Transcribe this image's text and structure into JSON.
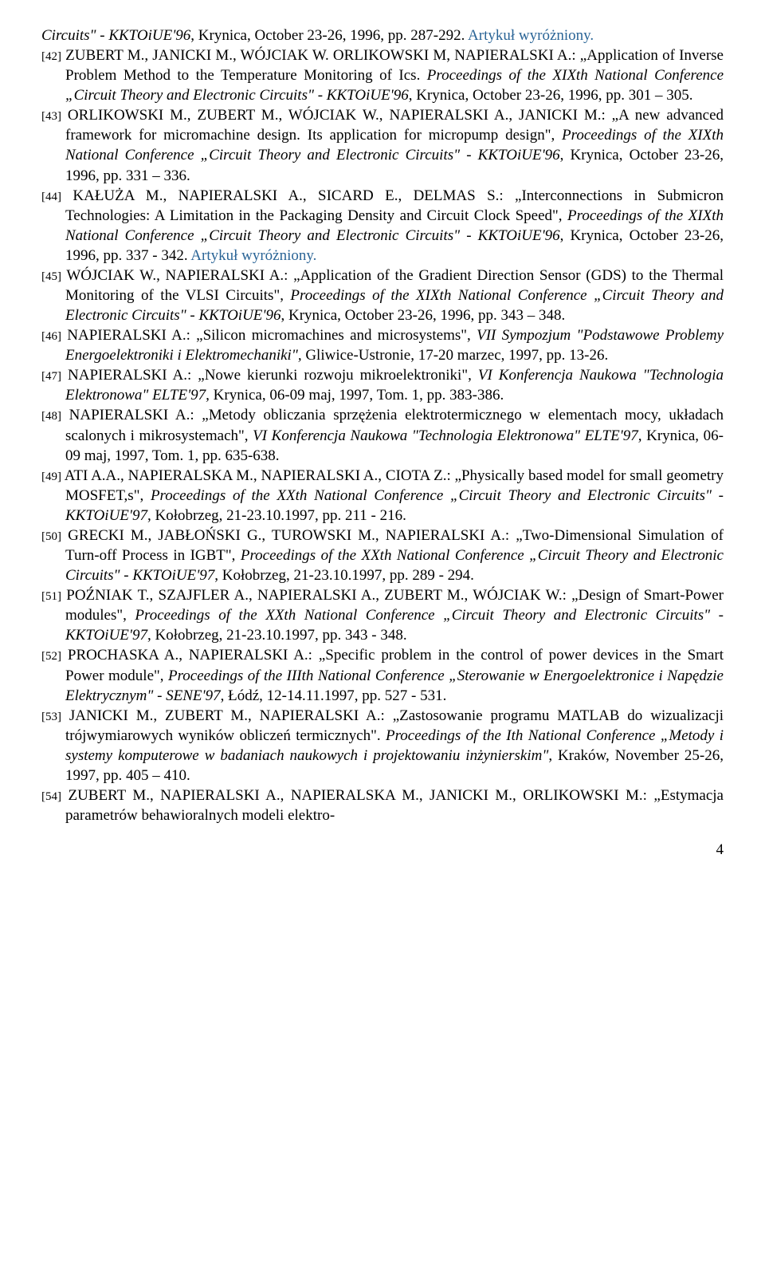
{
  "trail_italic": "Circuits\" - KKTOiUE'96",
  "trail_plain": ", Krynica, October 23-26, 1996, pp. 287-292. ",
  "trail_highlight": "Artykuł wyróżniony.",
  "page_number": "4",
  "refs": [
    {
      "num": "[42]",
      "plain1": " ZUBERT M., JANICKI M., WÓJCIAK W. ORLIKOWSKI M, NAPIERALSKI A.: „Application of Inverse Problem Method to the Temperature Monitoring of Ics. ",
      "italic1": "Proceedings of the XIXth National Conference „Circuit Theory and Electronic Circuits\" - KKTOiUE'96",
      "plain2": ", Krynica, October 23-26, 1996, pp. 301 – 305.",
      "italic2": "",
      "plain3": "",
      "highlight": ""
    },
    {
      "num": "[43]",
      "plain1": " ORLIKOWSKI M., ZUBERT M., WÓJCIAK W., NAPIERALSKI A., JANICKI M.: „A new advanced framework for micromachine design. Its application for micropump design\", ",
      "italic1": "Proceedings of the XIXth National Conference „Circuit Theory and Electronic Circuits\" - KKTOiUE'96",
      "plain2": ", Krynica, October 23-26, 1996, pp. 331 – 336.",
      "italic2": "",
      "plain3": "",
      "highlight": ""
    },
    {
      "num": "[44]",
      "plain1": " KAŁUŻA M., NAPIERALSKI A., SICARD E., DELMAS S.: „Interconnections in Submicron Technologies: A Limitation in the Packaging Density and Circuit Clock Speed\", ",
      "italic1": "Proceedings of the XIXth National Conference „Circuit Theory and Electronic Circuits\" - KKTOiUE'96",
      "plain2": ", Krynica, October 23-26, 1996, pp. 337 - 342. ",
      "italic2": "",
      "plain3": "",
      "highlight": "Artykuł wyróżniony."
    },
    {
      "num": "[45]",
      "plain1": " WÓJCIAK W., NAPIERALSKI A.: „Application of the Gradient Direction Sensor (GDS) to the Thermal Monitoring of the VLSI Circuits\", ",
      "italic1": "Proceedings of the XIXth National Conference „Circuit Theory and Electronic Circuits\" - KKTOiUE'96",
      "plain2": ", Krynica, October 23-26, 1996, pp. 343 – 348.",
      "italic2": "",
      "plain3": "",
      "highlight": ""
    },
    {
      "num": "[46]",
      "plain1": " NAPIERALSKI A.: „Silicon micromachines and microsystems\", ",
      "italic1": "VII Sympozjum \"Podstawowe Problemy Energoelektroniki i Elektromechaniki\",",
      "plain2": " Gliwice-Ustronie, 17-20 marzec, 1997, pp. 13-26.",
      "italic2": "",
      "plain3": "",
      "highlight": ""
    },
    {
      "num": "[47]",
      "plain1": " NAPIERALSKI A.: „Nowe kierunki rozwoju mikroelektroniki\", ",
      "italic1": "VI Konferencja Naukowa \"Technologia Elektronowa\" ELTE'97,",
      "plain2": " Krynica, 06-09 maj, 1997, Tom. 1, pp. 383-386.",
      "italic2": "",
      "plain3": "",
      "highlight": ""
    },
    {
      "num": "[48]",
      "plain1": " NAPIERALSKI A.: „Metody obliczania sprzężenia elektrotermicznego w elementach mocy, układach scalonych i mikrosystemach\", ",
      "italic1": "VI Konferencja Naukowa \"Technologia Elektronowa\" ELTE'97,",
      "plain2": " Krynica, 06-09 maj, 1997, Tom. 1, pp. 635-638.",
      "italic2": "",
      "plain3": "",
      "highlight": ""
    },
    {
      "num": "[49]",
      "plain1": " ATI A.A., NAPIERALSKA M., NAPIERALSKI A., CIOTA Z.: „Physically based model for small geometry MOSFET,s\", ",
      "italic1": "Proceedings of the XXth National Conference „Circuit Theory and Electronic Circuits\" - KKTOiUE'97",
      "plain2": ", Kołobrzeg, 21-23.10.1997, pp. 211 - 216.",
      "italic2": "",
      "plain3": "",
      "highlight": ""
    },
    {
      "num": "[50]",
      "plain1": " GRECKI M., JABŁOŃSKI G., TUROWSKI M., NAPIERALSKI A.: „Two-Dimensional Simulation of Turn-off Process in IGBT\", ",
      "italic1": "Proceedings of the XXth National Conference „Circuit Theory and Electronic Circuits\" - KKTOiUE'97",
      "plain2": ", Kołobrzeg, 21-23.10.1997, pp. 289 - 294.",
      "italic2": "",
      "plain3": "",
      "highlight": ""
    },
    {
      "num": "[51]",
      "plain1": " POŹNIAK T., SZAJFLER A., NAPIERALSKI A., ZUBERT M., WÓJCIAK W.: „Design of Smart-Power modules\", ",
      "italic1": "Proceedings of the XXth National Conference „Circuit Theory and Electronic Circuits\" - KKTOiUE'97",
      "plain2": ", Kołobrzeg, 21-23.10.1997, pp. 343 - 348.",
      "italic2": "",
      "plain3": "",
      "highlight": ""
    },
    {
      "num": "[52]",
      "plain1": " PROCHASKA A., NAPIERALSKI A.: „Specific problem in the control of power devices in the Smart Power module\", ",
      "italic1": "Proceedings of the IIIth National Conference „Sterowanie w Energoelektronice i Napędzie Elektrycznym\" - SENE'97",
      "plain2": ", Łódź, 12-14.11.1997, pp. 527 - 531.",
      "italic2": "",
      "plain3": "",
      "highlight": ""
    },
    {
      "num": "[53]",
      "plain1": " JANICKI M., ZUBERT M., NAPIERALSKI A.: „Zastosowanie programu MATLAB do wizualizacji trójwymiarowych wyników obliczeń termicznych\". ",
      "italic1": "Proceedings of the Ith National Conference „Metody i systemy komputerowe w badaniach naukowych i projektowaniu inżynierskim\"",
      "plain2": ", Kraków, November 25-26, 1997, pp. 405 – 410.",
      "italic2": "",
      "plain3": "",
      "highlight": ""
    },
    {
      "num": "[54]",
      "plain1": " ZUBERT M., NAPIERALSKI A., NAPIERALSKA M., JANICKI M., ORLIKOWSKI M.: „Estymacja parametrów behawioralnych modeli elektro-",
      "italic1": "",
      "plain2": "",
      "italic2": "",
      "plain3": "",
      "highlight": ""
    }
  ]
}
